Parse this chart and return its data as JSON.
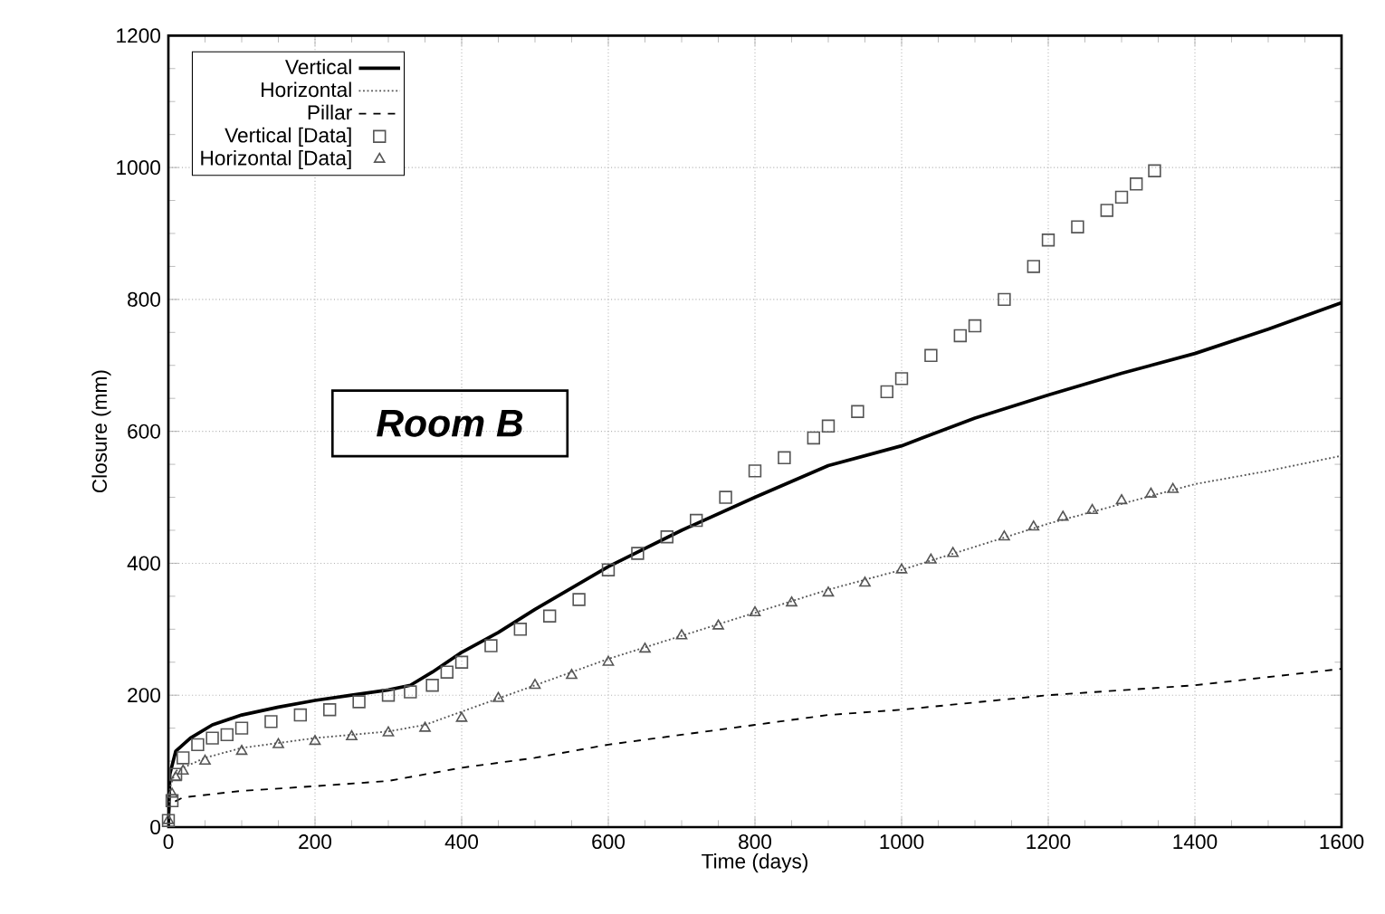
{
  "chart_data": {
    "type": "line",
    "xlabel": "Time (days)",
    "ylabel": "Closure (mm)",
    "annotations": [
      "Room B"
    ],
    "xlim": [
      0,
      1600
    ],
    "ylim": [
      0,
      1200
    ],
    "xticks": [
      0,
      200,
      400,
      600,
      800,
      1000,
      1200,
      1400,
      1600
    ],
    "yticks": [
      0,
      200,
      400,
      600,
      800,
      1000,
      1200
    ],
    "grid": true,
    "legend": "top left",
    "series": [
      {
        "name": "Vertical",
        "color": "#000000",
        "line_style": "solid",
        "marker": "none",
        "x": [
          0,
          2,
          10,
          30,
          60,
          100,
          150,
          200,
          250,
          300,
          330,
          360,
          400,
          450,
          500,
          600,
          700,
          800,
          900,
          1000,
          1100,
          1200,
          1300,
          1400,
          1500,
          1600
        ],
        "values": [
          0,
          80,
          115,
          135,
          155,
          170,
          182,
          192,
          200,
          208,
          215,
          235,
          265,
          295,
          330,
          395,
          450,
          500,
          548,
          578,
          620,
          655,
          688,
          718,
          755,
          795
        ]
      },
      {
        "name": "Horizontal",
        "color": "#555555",
        "line_style": "dotted",
        "marker": "none",
        "x": [
          0,
          2,
          10,
          50,
          100,
          200,
          300,
          350,
          400,
          500,
          600,
          700,
          800,
          900,
          1000,
          1100,
          1200,
          1300,
          1400,
          1500,
          1600
        ],
        "values": [
          0,
          60,
          85,
          105,
          120,
          135,
          145,
          155,
          175,
          215,
          255,
          290,
          325,
          360,
          390,
          425,
          460,
          490,
          520,
          540,
          563
        ]
      },
      {
        "name": "Pillar",
        "color": "#000000",
        "line_style": "dashed",
        "marker": "none",
        "x": [
          0,
          2,
          20,
          100,
          200,
          300,
          400,
          500,
          600,
          700,
          800,
          900,
          1000,
          1200,
          1400,
          1600
        ],
        "values": [
          0,
          35,
          45,
          55,
          62,
          70,
          90,
          105,
          125,
          140,
          155,
          170,
          178,
          200,
          215,
          240
        ]
      },
      {
        "name": "Vertical [Data]",
        "type": "scatter",
        "color": "#555555",
        "marker": "square",
        "x": [
          0,
          5,
          10,
          20,
          40,
          60,
          80,
          100,
          140,
          180,
          220,
          260,
          300,
          330,
          360,
          380,
          400,
          440,
          480,
          520,
          560,
          600,
          640,
          680,
          720,
          760,
          800,
          840,
          880,
          900,
          940,
          980,
          1000,
          1040,
          1080,
          1100,
          1140,
          1180,
          1200,
          1240,
          1280,
          1300,
          1320,
          1345
        ],
        "values": [
          10,
          40,
          80,
          105,
          125,
          135,
          140,
          150,
          160,
          170,
          178,
          190,
          200,
          205,
          215,
          235,
          250,
          275,
          300,
          320,
          345,
          390,
          415,
          440,
          465,
          500,
          540,
          560,
          590,
          608,
          630,
          660,
          680,
          715,
          745,
          760,
          800,
          850,
          890,
          910,
          935,
          955,
          975,
          995
        ]
      },
      {
        "name": "Horizontal [Data]",
        "type": "scatter",
        "color": "#555555",
        "marker": "triangle",
        "x": [
          0,
          5,
          10,
          20,
          50,
          100,
          150,
          200,
          250,
          300,
          350,
          400,
          450,
          500,
          550,
          600,
          650,
          700,
          750,
          800,
          850,
          900,
          950,
          1000,
          1040,
          1070,
          1140,
          1180,
          1220,
          1260,
          1300,
          1340,
          1370
        ],
        "values": [
          10,
          50,
          75,
          85,
          100,
          115,
          125,
          130,
          137,
          143,
          150,
          165,
          195,
          215,
          230,
          250,
          270,
          290,
          305,
          325,
          340,
          355,
          370,
          390,
          405,
          415,
          440,
          455,
          470,
          480,
          495,
          505,
          512
        ]
      }
    ]
  }
}
